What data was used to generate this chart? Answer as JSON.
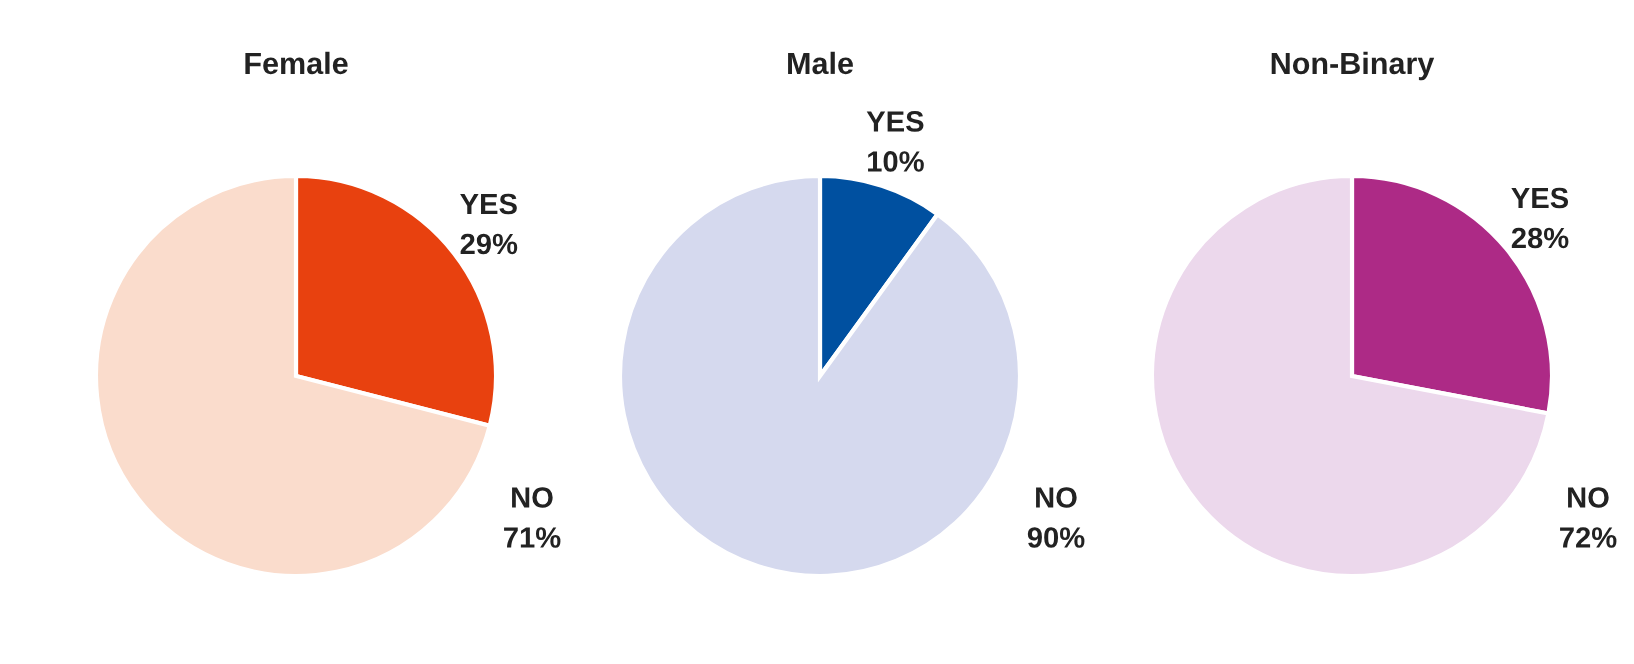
{
  "chart_data": [
    {
      "type": "pie",
      "title": "Female",
      "categories": [
        "YES",
        "NO"
      ],
      "values": [
        29,
        71
      ],
      "value_labels": [
        "29%",
        "71%"
      ],
      "colors": [
        "#e8410f",
        "#fadccc"
      ]
    },
    {
      "type": "pie",
      "title": "Male",
      "categories": [
        "YES",
        "NO"
      ],
      "values": [
        10,
        90
      ],
      "value_labels": [
        "10%",
        "90%"
      ],
      "colors": [
        "#0050a0",
        "#d5d9ee"
      ]
    },
    {
      "type": "pie",
      "title": "Non-Binary",
      "categories": [
        "YES",
        "NO"
      ],
      "values": [
        28,
        72
      ],
      "value_labels": [
        "28%",
        "72%"
      ],
      "colors": [
        "#ad2a86",
        "#ecd8ec"
      ]
    }
  ]
}
